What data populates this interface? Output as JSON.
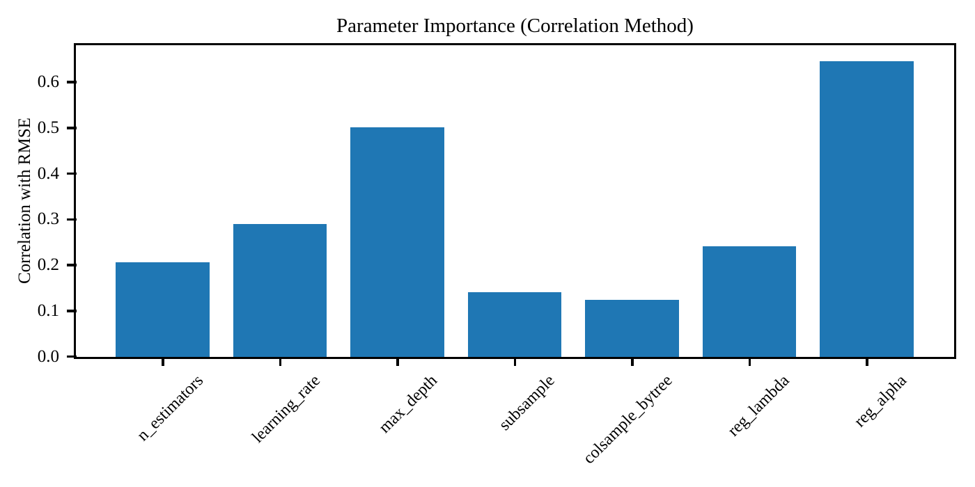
{
  "chart_data": {
    "type": "bar",
    "title": "Parameter Importance (Correlation Method)",
    "xlabel": "",
    "ylabel": "Correlation with RMSE",
    "categories": [
      "n_estimators",
      "learning_rate",
      "max_depth",
      "subsample",
      "colsample_bytree",
      "reg_lambda",
      "reg_alpha"
    ],
    "values": [
      0.207,
      0.291,
      0.502,
      0.142,
      0.125,
      0.242,
      0.647
    ],
    "ylim": [
      0,
      0.68
    ],
    "yticks": [
      0.0,
      0.1,
      0.2,
      0.3,
      0.4,
      0.5,
      0.6
    ],
    "ytick_labels": [
      "0.0",
      "0.1",
      "0.2",
      "0.3",
      "0.4",
      "0.5",
      "0.6"
    ],
    "x_tick_rotation_deg": 45,
    "bar_width_fraction": 0.8,
    "x_margin_units": 0.74,
    "grid": false,
    "legend": null,
    "colors": {
      "bar": "#1f77b4",
      "axis": "#000000",
      "text": "#000000",
      "background": "#ffffff"
    }
  }
}
